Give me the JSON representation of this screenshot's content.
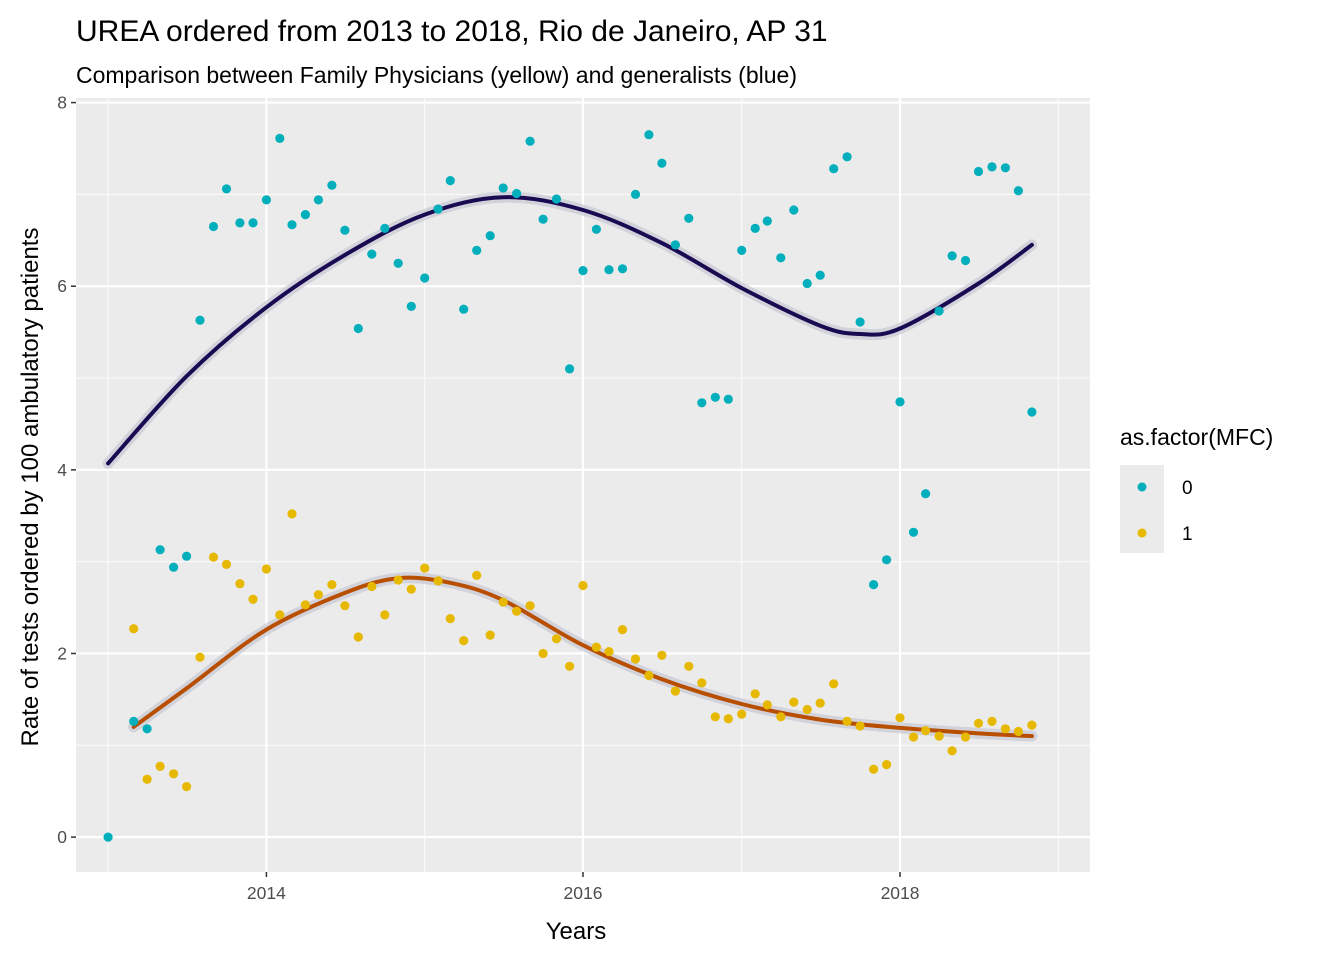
{
  "chart_data": {
    "type": "scatter",
    "title": "UREA ordered from 2013 to 2018, Rio de Janeiro, AP 31",
    "subtitle": "Comparison between Family Physicians (yellow) and generalists (blue)",
    "xlabel": "Years",
    "ylabel": "Rate of tests ordered by 100 ambulatory patients",
    "xlim": [
      "2012-10-19",
      "2019-03-15"
    ],
    "ylim": [
      -0.38,
      8.05
    ],
    "x_ticks": [
      "2014",
      "2016",
      "2018"
    ],
    "x_tick_dates": [
      "2014-01-01",
      "2016-01-01",
      "2018-01-01"
    ],
    "y_ticks": [
      0,
      2,
      4,
      6,
      8
    ],
    "grid": true,
    "panel_background": "#ebebeb",
    "legend": {
      "title": "as.factor(MFC)",
      "position": "right",
      "entries": [
        {
          "label": "0",
          "color": "#00afbb"
        },
        {
          "label": "1",
          "color": "#e7b800"
        }
      ]
    },
    "series": [
      {
        "group": "0",
        "color": "#00afbb",
        "smooth_color": "#1a0a52",
        "points": [
          [
            "2013-01-01",
            0.0
          ],
          [
            "2013-03-01",
            1.26
          ],
          [
            "2013-04-01",
            1.18
          ],
          [
            "2013-05-01",
            3.13
          ],
          [
            "2013-06-01",
            2.94
          ],
          [
            "2013-07-01",
            3.06
          ],
          [
            "2013-08-01",
            5.63
          ],
          [
            "2013-09-01",
            6.65
          ],
          [
            "2013-10-01",
            7.06
          ],
          [
            "2013-11-01",
            6.69
          ],
          [
            "2013-12-01",
            6.69
          ],
          [
            "2014-01-01",
            6.94
          ],
          [
            "2014-02-01",
            7.61
          ],
          [
            "2014-03-01",
            6.67
          ],
          [
            "2014-04-01",
            6.78
          ],
          [
            "2014-05-01",
            6.94
          ],
          [
            "2014-06-01",
            7.1
          ],
          [
            "2014-07-01",
            6.61
          ],
          [
            "2014-08-01",
            5.54
          ],
          [
            "2014-09-01",
            6.35
          ],
          [
            "2014-10-01",
            6.63
          ],
          [
            "2014-11-01",
            6.25
          ],
          [
            "2014-12-01",
            5.78
          ],
          [
            "2015-01-01",
            6.09
          ],
          [
            "2015-02-01",
            6.84
          ],
          [
            "2015-03-01",
            7.15
          ],
          [
            "2015-04-01",
            5.75
          ],
          [
            "2015-05-01",
            6.39
          ],
          [
            "2015-06-01",
            6.55
          ],
          [
            "2015-07-01",
            7.07
          ],
          [
            "2015-08-01",
            7.01
          ],
          [
            "2015-09-01",
            7.58
          ],
          [
            "2015-10-01",
            6.73
          ],
          [
            "2015-11-01",
            6.95
          ],
          [
            "2015-12-01",
            5.1
          ],
          [
            "2016-01-01",
            6.17
          ],
          [
            "2016-02-01",
            6.62
          ],
          [
            "2016-03-01",
            6.18
          ],
          [
            "2016-04-01",
            6.19
          ],
          [
            "2016-05-01",
            7.0
          ],
          [
            "2016-06-01",
            7.65
          ],
          [
            "2016-07-01",
            7.34
          ],
          [
            "2016-08-01",
            6.45
          ],
          [
            "2016-09-01",
            6.74
          ],
          [
            "2016-10-01",
            4.73
          ],
          [
            "2016-11-01",
            4.79
          ],
          [
            "2016-12-01",
            4.77
          ],
          [
            "2017-01-01",
            6.39
          ],
          [
            "2017-02-01",
            6.63
          ],
          [
            "2017-03-01",
            6.71
          ],
          [
            "2017-04-01",
            6.31
          ],
          [
            "2017-05-01",
            6.83
          ],
          [
            "2017-06-01",
            6.03
          ],
          [
            "2017-07-01",
            6.12
          ],
          [
            "2017-08-01",
            7.28
          ],
          [
            "2017-09-01",
            7.41
          ],
          [
            "2017-10-01",
            5.61
          ],
          [
            "2017-11-01",
            2.75
          ],
          [
            "2017-12-01",
            3.02
          ],
          [
            "2018-01-01",
            4.74
          ],
          [
            "2018-02-01",
            3.32
          ],
          [
            "2018-03-01",
            3.74
          ],
          [
            "2018-04-01",
            5.73
          ],
          [
            "2018-05-01",
            6.33
          ],
          [
            "2018-06-01",
            6.28
          ],
          [
            "2018-07-01",
            7.25
          ],
          [
            "2018-08-01",
            7.3
          ],
          [
            "2018-09-01",
            7.29
          ],
          [
            "2018-10-01",
            7.04
          ],
          [
            "2018-11-01",
            4.63
          ]
        ],
        "smooth": [
          [
            "2013-01-01",
            4.07
          ],
          [
            "2013-07-01",
            5.02
          ],
          [
            "2014-01-01",
            5.77
          ],
          [
            "2014-07-01",
            6.34
          ],
          [
            "2015-01-01",
            6.78
          ],
          [
            "2015-07-01",
            6.97
          ],
          [
            "2016-01-01",
            6.83
          ],
          [
            "2016-07-01",
            6.47
          ],
          [
            "2017-01-01",
            5.98
          ],
          [
            "2017-07-01",
            5.57
          ],
          [
            "2017-10-01",
            5.48
          ],
          [
            "2018-01-01",
            5.54
          ],
          [
            "2018-07-01",
            6.03
          ],
          [
            "2018-11-01",
            6.45
          ]
        ]
      },
      {
        "group": "1",
        "color": "#e7b800",
        "smooth_color": "#b84e00",
        "points": [
          [
            "2013-03-01",
            2.27
          ],
          [
            "2013-04-01",
            0.63
          ],
          [
            "2013-05-01",
            0.77
          ],
          [
            "2013-06-01",
            0.69
          ],
          [
            "2013-07-01",
            0.55
          ],
          [
            "2013-08-01",
            1.96
          ],
          [
            "2013-09-01",
            3.05
          ],
          [
            "2013-10-01",
            2.97
          ],
          [
            "2013-11-01",
            2.76
          ],
          [
            "2013-12-01",
            2.59
          ],
          [
            "2014-01-01",
            2.92
          ],
          [
            "2014-02-01",
            2.42
          ],
          [
            "2014-03-01",
            3.52
          ],
          [
            "2014-04-01",
            2.53
          ],
          [
            "2014-05-01",
            2.64
          ],
          [
            "2014-06-01",
            2.75
          ],
          [
            "2014-07-01",
            2.52
          ],
          [
            "2014-08-01",
            2.18
          ],
          [
            "2014-09-01",
            2.73
          ],
          [
            "2014-10-01",
            2.42
          ],
          [
            "2014-11-01",
            2.8
          ],
          [
            "2014-12-01",
            2.7
          ],
          [
            "2015-01-01",
            2.93
          ],
          [
            "2015-02-01",
            2.79
          ],
          [
            "2015-03-01",
            2.38
          ],
          [
            "2015-04-01",
            2.14
          ],
          [
            "2015-05-01",
            2.85
          ],
          [
            "2015-06-01",
            2.2
          ],
          [
            "2015-07-01",
            2.56
          ],
          [
            "2015-08-01",
            2.46
          ],
          [
            "2015-09-01",
            2.52
          ],
          [
            "2015-10-01",
            2.0
          ],
          [
            "2015-11-01",
            2.16
          ],
          [
            "2015-12-01",
            1.86
          ],
          [
            "2016-01-01",
            2.74
          ],
          [
            "2016-02-01",
            2.07
          ],
          [
            "2016-03-01",
            2.02
          ],
          [
            "2016-04-01",
            2.26
          ],
          [
            "2016-05-01",
            1.94
          ],
          [
            "2016-06-01",
            1.76
          ],
          [
            "2016-07-01",
            1.98
          ],
          [
            "2016-08-01",
            1.59
          ],
          [
            "2016-09-01",
            1.86
          ],
          [
            "2016-10-01",
            1.68
          ],
          [
            "2016-11-01",
            1.31
          ],
          [
            "2016-12-01",
            1.29
          ],
          [
            "2017-01-01",
            1.34
          ],
          [
            "2017-02-01",
            1.56
          ],
          [
            "2017-03-01",
            1.44
          ],
          [
            "2017-04-01",
            1.31
          ],
          [
            "2017-05-01",
            1.47
          ],
          [
            "2017-06-01",
            1.39
          ],
          [
            "2017-07-01",
            1.46
          ],
          [
            "2017-08-01",
            1.67
          ],
          [
            "2017-09-01",
            1.26
          ],
          [
            "2017-10-01",
            1.21
          ],
          [
            "2017-11-01",
            0.74
          ],
          [
            "2017-12-01",
            0.79
          ],
          [
            "2018-01-01",
            1.3
          ],
          [
            "2018-02-01",
            1.09
          ],
          [
            "2018-03-01",
            1.16
          ],
          [
            "2018-04-01",
            1.1
          ],
          [
            "2018-05-01",
            0.94
          ],
          [
            "2018-06-01",
            1.09
          ],
          [
            "2018-07-01",
            1.24
          ],
          [
            "2018-08-01",
            1.26
          ],
          [
            "2018-09-01",
            1.18
          ],
          [
            "2018-10-01",
            1.15
          ],
          [
            "2018-11-01",
            1.22
          ]
        ],
        "smooth": [
          [
            "2013-03-01",
            1.2
          ],
          [
            "2013-07-01",
            1.62
          ],
          [
            "2014-01-01",
            2.26
          ],
          [
            "2014-07-01",
            2.66
          ],
          [
            "2014-11-01",
            2.82
          ],
          [
            "2015-03-01",
            2.77
          ],
          [
            "2015-07-01",
            2.58
          ],
          [
            "2016-01-01",
            2.09
          ],
          [
            "2016-07-01",
            1.72
          ],
          [
            "2017-01-01",
            1.45
          ],
          [
            "2017-07-01",
            1.28
          ],
          [
            "2018-01-01",
            1.19
          ],
          [
            "2018-07-01",
            1.13
          ],
          [
            "2018-11-01",
            1.1
          ]
        ]
      }
    ]
  }
}
